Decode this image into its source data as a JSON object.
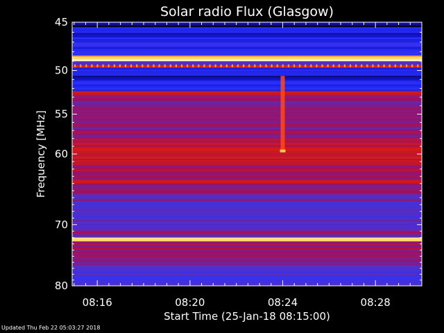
{
  "footer": {
    "updated_text": "Updated Thu Feb 22 05:03:27 2018"
  },
  "chart_data": {
    "type": "heatmap",
    "title": "Solar radio Flux (Glasgow)",
    "xlabel": "Start Time (25-Jan-18 08:15:00)",
    "ylabel": "Frequency [MHz]",
    "x_range": [
      "08:14:55",
      "08:30:00"
    ],
    "y_range": [
      45,
      80
    ],
    "y_axis_direction": "inverted",
    "y_scale": "log",
    "x_ticks": [
      {
        "time": "08:16:00",
        "label": "08:16"
      },
      {
        "time": "08:20:00",
        "label": "08:20"
      },
      {
        "time": "08:24:00",
        "label": "08:24"
      },
      {
        "time": "08:28:00",
        "label": "08:28"
      }
    ],
    "y_ticks": [
      {
        "value": 45,
        "label": "45"
      },
      {
        "value": 50,
        "label": "50"
      },
      {
        "value": 55,
        "label": "55"
      },
      {
        "value": 60,
        "label": "60"
      },
      {
        "value": 70,
        "label": "70"
      },
      {
        "value": 80,
        "label": "80"
      }
    ],
    "frequency_bands": [
      {
        "from": 45.0,
        "to": 45.5,
        "level": 0.05
      },
      {
        "from": 45.5,
        "to": 46.5,
        "level": 0.15
      },
      {
        "from": 46.5,
        "to": 48.4,
        "level": 0.2
      },
      {
        "from": 48.4,
        "to": 48.8,
        "level": 0.85
      },
      {
        "from": 48.8,
        "to": 49.0,
        "level": 1.0
      },
      {
        "from": 49.0,
        "to": 49.4,
        "level": 0.3
      },
      {
        "from": 49.4,
        "to": 49.7,
        "level": 0.6
      },
      {
        "from": 49.7,
        "to": 50.6,
        "level": 0.2
      },
      {
        "from": 50.6,
        "to": 51.0,
        "level": 0.1
      },
      {
        "from": 51.0,
        "to": 52.3,
        "level": 0.18
      },
      {
        "from": 52.3,
        "to": 52.8,
        "level": 0.58
      },
      {
        "from": 52.8,
        "to": 53.4,
        "level": 0.45
      },
      {
        "from": 53.4,
        "to": 55.5,
        "level": 0.4
      },
      {
        "from": 55.5,
        "to": 58.0,
        "level": 0.42
      },
      {
        "from": 58.0,
        "to": 61.5,
        "level": 0.52
      },
      {
        "from": 61.5,
        "to": 63.5,
        "level": 0.45
      },
      {
        "from": 63.5,
        "to": 64.0,
        "level": 0.55
      },
      {
        "from": 64.0,
        "to": 65.0,
        "level": 0.42
      },
      {
        "from": 65.0,
        "to": 65.5,
        "level": 0.5
      },
      {
        "from": 65.5,
        "to": 67.0,
        "level": 0.35
      },
      {
        "from": 67.0,
        "to": 70.5,
        "level": 0.32
      },
      {
        "from": 70.5,
        "to": 72.0,
        "level": 0.4
      },
      {
        "from": 72.0,
        "to": 72.6,
        "level": 0.9
      },
      {
        "from": 72.6,
        "to": 74.5,
        "level": 0.45
      },
      {
        "from": 74.5,
        "to": 76.5,
        "level": 0.4
      },
      {
        "from": 76.5,
        "to": 80.0,
        "level": 0.3
      }
    ],
    "burst": {
      "time": "08:24:00",
      "from_mhz": 50.6,
      "to_mhz": 59.6,
      "level": 0.7
    },
    "colormap": [
      "#000000",
      "#1010c0",
      "#2a30ff",
      "#5030c8",
      "#a01060",
      "#d01818",
      "#ff2a10",
      "#ff9020",
      "#ffe070",
      "#ffffff"
    ]
  }
}
